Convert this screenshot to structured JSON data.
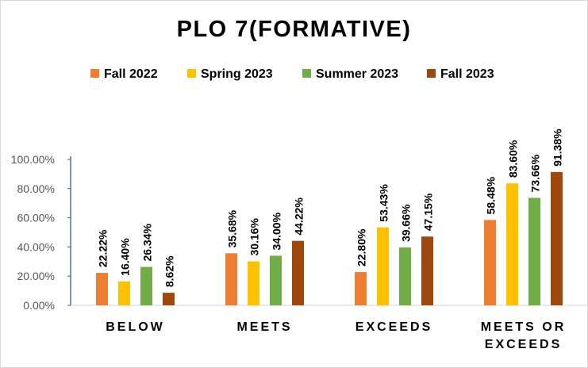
{
  "chart_data": {
    "type": "bar",
    "title": "PLO 7(FORMATIVE)",
    "categories": [
      "BELOW",
      "MEETS",
      "EXCEEDS",
      "MEETS OR EXCEEDS"
    ],
    "category_lines": [
      [
        "BELOW"
      ],
      [
        "MEETS"
      ],
      [
        "EXCEEDS"
      ],
      [
        "MEETS OR",
        "EXCEEDS"
      ]
    ],
    "series": [
      {
        "name": "Fall 2022",
        "color": "#ED7D31",
        "values": [
          22.22,
          35.68,
          22.8,
          58.48
        ],
        "labels": [
          "22.22%",
          "35.68%",
          "22.80%",
          "58.48%"
        ]
      },
      {
        "name": "Spring 2023",
        "color": "#FFC000",
        "values": [
          16.4,
          30.16,
          53.43,
          83.6
        ],
        "labels": [
          "16.40%",
          "30.16%",
          "53.43%",
          "83.60%"
        ]
      },
      {
        "name": "Summer 2023",
        "color": "#70AD47",
        "values": [
          26.34,
          34.0,
          39.66,
          73.66
        ],
        "labels": [
          "26.34%",
          "34.00%",
          "39.66%",
          "73.66%"
        ]
      },
      {
        "name": "Fall 2023",
        "color": "#9E480E",
        "values": [
          8.62,
          44.22,
          47.15,
          91.38
        ],
        "labels": [
          "8.62%",
          "44.22%",
          "47.15%",
          "91.38%"
        ]
      }
    ],
    "ylim": [
      0,
      100
    ],
    "yticks": [
      0,
      20,
      40,
      60,
      80,
      100
    ],
    "ytick_labels": [
      "0.00%",
      "20.00%",
      "40.00%",
      "60.00%",
      "80.00%",
      "100.00%"
    ],
    "legend_position": "top",
    "grid": false
  }
}
